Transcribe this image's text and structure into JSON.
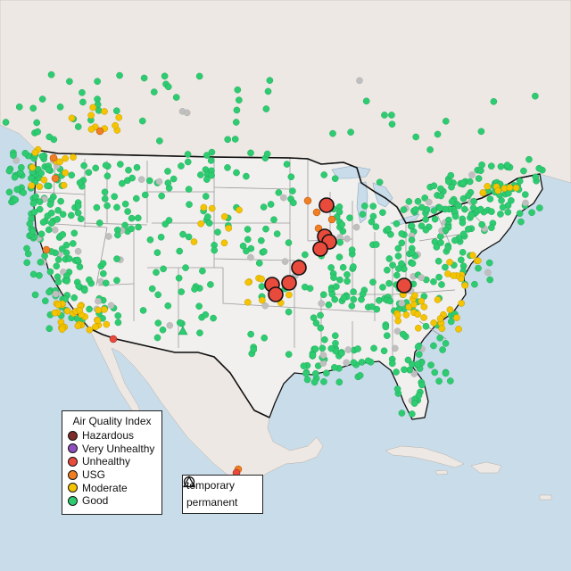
{
  "legend": {
    "title": "Air Quality Index",
    "categories": [
      {
        "label": "Hazardous",
        "color": "#7e2c2c"
      },
      {
        "label": "Very Unhealthy",
        "color": "#8f4fbf"
      },
      {
        "label": "Unhealthy",
        "color": "#e84a3c"
      },
      {
        "label": "USG",
        "color": "#f07e22"
      },
      {
        "label": "Moderate",
        "color": "#f5c400"
      },
      {
        "label": "Good",
        "color": "#2ecc71"
      }
    ],
    "monitor_types": [
      {
        "label": "temporary",
        "shape": "circle"
      },
      {
        "label": "permanent",
        "shape": "triangle"
      }
    ]
  },
  "colors": {
    "water": "#c9dcea",
    "land": "#ede8e3",
    "us_land": "#f2f0ee",
    "border": "#111111",
    "state_line": "#9a9a9a",
    "no_data": "#bfbfbf"
  }
}
